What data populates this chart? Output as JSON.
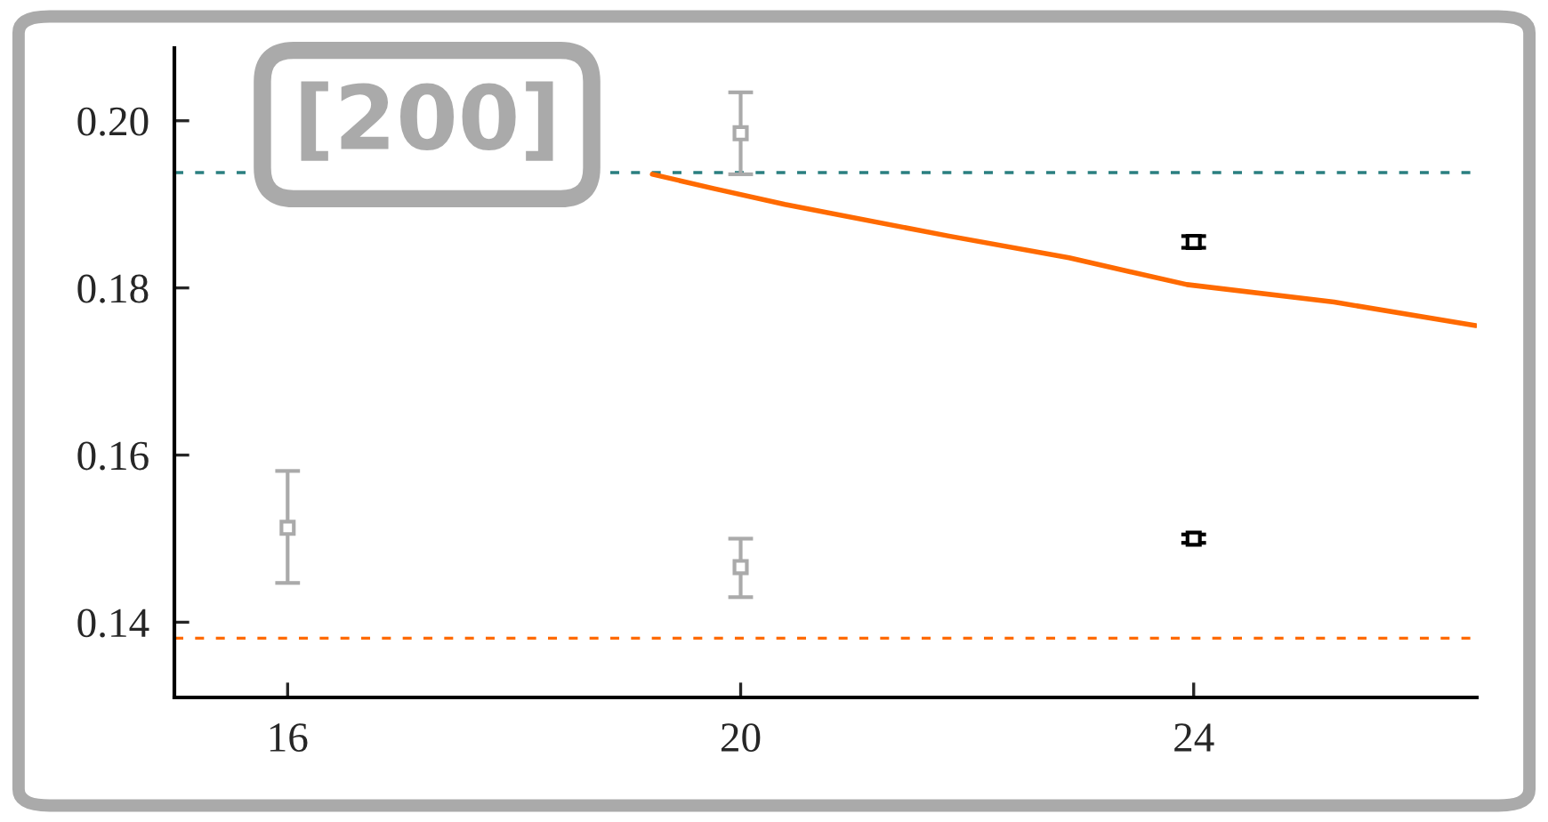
{
  "chart_data": {
    "type": "scatter",
    "annotations": [
      "[200]"
    ],
    "xlim": [
      15,
      26.5
    ],
    "ylim": [
      0.131,
      0.2087
    ],
    "xticks": [
      16,
      20,
      24
    ],
    "yticks": [
      {
        "value": 0.14,
        "label": "0.14"
      },
      {
        "value": 0.16,
        "label": "0.16"
      },
      {
        "value": 0.18,
        "label": "0.18"
      },
      {
        "value": 0.2,
        "label": "0.20"
      }
    ],
    "series": [
      {
        "marker": "square",
        "color": "#aaaaaa",
        "x": [
          16,
          20,
          20
        ],
        "values": [
          0.1513,
          0.1466,
          0.1985
        ],
        "errors": [
          [
            0.1447,
            0.1581
          ],
          [
            0.143,
            0.15
          ],
          [
            0.1936,
            0.2034
          ]
        ]
      },
      {
        "marker": "square",
        "color": "#000000",
        "x": [
          24,
          24
        ],
        "values": [
          0.1855,
          0.15
        ],
        "errors": [
          0.0007,
          0.0005
        ]
      },
      {
        "type": "line",
        "color": "#ff6a00",
        "x": [
          19.22,
          19.76,
          20.39,
          21.84,
          22.9,
          23.94,
          25.24,
          26.49
        ],
        "values": [
          0.1936,
          0.1919,
          0.19,
          0.1862,
          0.1836,
          0.1804,
          0.1783,
          0.1755
        ]
      }
    ],
    "ref_lines": [
      {
        "axis": "y",
        "value": 0.1938,
        "color": "#2a7f80",
        "line_style": "dashed"
      },
      {
        "axis": "y",
        "value": 0.1381,
        "color": "#ff6a00",
        "line_style": "dashed"
      }
    ]
  }
}
